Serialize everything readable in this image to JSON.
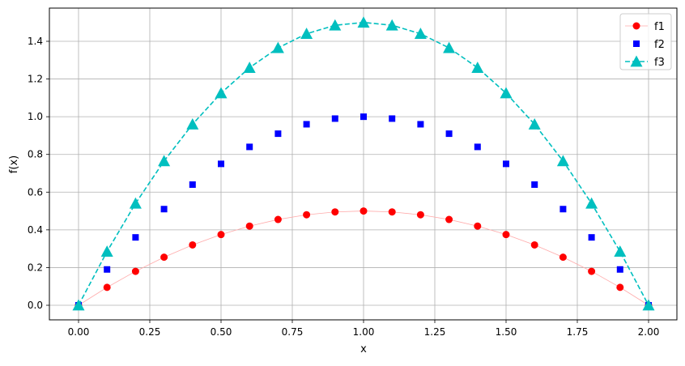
{
  "chart_data": {
    "type": "line",
    "title": "",
    "xlabel": "x",
    "ylabel": "f(x)",
    "xlim": [
      -0.1,
      2.1
    ],
    "ylim": [
      -0.075,
      1.575
    ],
    "grid": true,
    "legend_position": "upper right",
    "x": [
      0.0,
      0.1,
      0.2,
      0.3,
      0.4,
      0.5,
      0.6,
      0.7,
      0.8,
      0.9,
      1.0,
      1.1,
      1.2,
      1.3,
      1.4,
      1.5,
      1.6,
      1.7,
      1.8,
      1.9,
      2.0
    ],
    "x_ticks": [
      "0.00",
      "0.25",
      "0.50",
      "0.75",
      "1.00",
      "1.25",
      "1.50",
      "1.75",
      "2.00"
    ],
    "x_tick_values": [
      0,
      0.25,
      0.5,
      0.75,
      1,
      1.25,
      1.5,
      1.75,
      2
    ],
    "y_ticks": [
      "0.0",
      "0.2",
      "0.4",
      "0.6",
      "0.8",
      "1.0",
      "1.2",
      "1.4"
    ],
    "y_tick_values": [
      0,
      0.2,
      0.4,
      0.6,
      0.8,
      1.0,
      1.2,
      1.4
    ],
    "series": [
      {
        "name": "f1",
        "color": "#ff0000",
        "marker": "circle",
        "line": "solid-thin",
        "line_color": "#ffaaaa",
        "values": [
          0,
          0.095,
          0.18,
          0.255,
          0.32,
          0.375,
          0.42,
          0.455,
          0.48,
          0.495,
          0.5,
          0.495,
          0.48,
          0.455,
          0.42,
          0.375,
          0.32,
          0.255,
          0.18,
          0.095,
          0
        ]
      },
      {
        "name": "f2",
        "color": "#0000ff",
        "marker": "square",
        "line": "none",
        "values": [
          0,
          0.19,
          0.36,
          0.51,
          0.64,
          0.75,
          0.84,
          0.91,
          0.96,
          0.99,
          1.0,
          0.99,
          0.96,
          0.91,
          0.84,
          0.75,
          0.64,
          0.51,
          0.36,
          0.19,
          0
        ]
      },
      {
        "name": "f3",
        "color": "#00bfbf",
        "marker": "triangle",
        "line": "dashed",
        "values": [
          0,
          0.285,
          0.54,
          0.765,
          0.96,
          1.125,
          1.26,
          1.365,
          1.44,
          1.485,
          1.5,
          1.485,
          1.44,
          1.365,
          1.26,
          1.125,
          0.96,
          0.765,
          0.54,
          0.285,
          0
        ]
      }
    ]
  }
}
